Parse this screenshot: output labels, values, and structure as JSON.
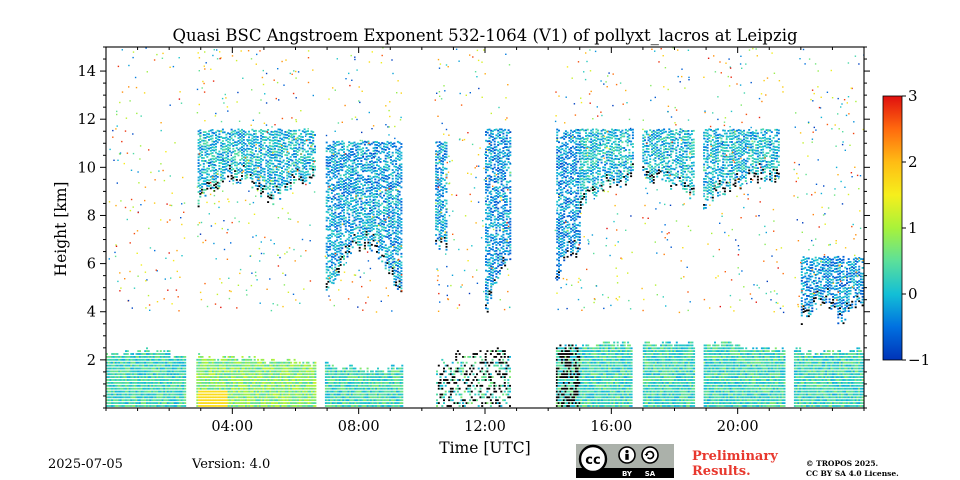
{
  "chart_data": {
    "type": "heatmap",
    "title": "Quasi BSC Angstroem Exponent 532-1064 (V1) of pollyxt_lacros at Leipzig",
    "xlabel": "Time [UTC]",
    "ylabel": "Height [km]",
    "xlim": [
      0,
      24
    ],
    "ylim": [
      0,
      15
    ],
    "x_ticks": [
      "04:00",
      "08:00",
      "12:00",
      "16:00",
      "20:00"
    ],
    "x_tick_hours": [
      4,
      8,
      12,
      16,
      20
    ],
    "y_ticks": [
      2,
      4,
      6,
      8,
      10,
      12,
      14
    ],
    "colorbar": {
      "range": [
        -1,
        3
      ],
      "ticks": [
        "3",
        "2",
        "1",
        "0",
        "−1"
      ],
      "tick_values": [
        3,
        2,
        1,
        0,
        -1
      ],
      "colormap": "jet"
    },
    "data_gaps_hours": [
      [
        2.5,
        2.85
      ],
      [
        6.6,
        6.9
      ],
      [
        9.35,
        10.4
      ],
      [
        12.8,
        14.2
      ],
      [
        16.65,
        16.95
      ],
      [
        18.6,
        18.9
      ],
      [
        21.45,
        21.75
      ]
    ],
    "layers": [
      {
        "kind": "boundary-layer",
        "t_start": 0,
        "t_end": 24,
        "top_km": [
          2.2,
          2.3,
          2.1,
          2.0,
          2.0,
          1.9,
          1.8,
          1.6,
          1.5,
          1.6,
          1.9,
          2.2,
          2.4,
          2.5,
          2.5,
          2.6,
          2.6,
          2.6,
          2.6,
          2.6,
          2.4,
          2.3,
          2.2,
          2.3
        ],
        "angstrom_typical": 0.3
      },
      {
        "kind": "cirrus",
        "t_start": 2.9,
        "t_end": 6.6,
        "base_km": 8.5,
        "top_km": 11.5,
        "angstrom_typical": 0.0
      },
      {
        "kind": "cirrus",
        "t_start": 6.9,
        "t_end": 10.8,
        "base_km": 4.5,
        "top_km": 11.0,
        "angstrom_typical": -0.2
      },
      {
        "kind": "cirrus",
        "t_start": 12.0,
        "t_end": 15.0,
        "base_km": 3.8,
        "top_km": 11.5,
        "angstrom_typical": -0.3
      },
      {
        "kind": "cirrus",
        "t_start": 15.0,
        "t_end": 21.3,
        "base_km": 8.5,
        "top_km": 11.5,
        "angstrom_typical": 0.0
      },
      {
        "kind": "mid-level cloud",
        "t_start": 22.0,
        "t_end": 24.0,
        "base_km": 3.5,
        "top_km": 6.2,
        "angstrom_typical": -0.3
      }
    ]
  },
  "footer": {
    "date": "2025-07-05",
    "version": "Version: 4.0",
    "preliminary_line1": "Preliminary",
    "preliminary_line2": "Results.",
    "copyright_line1": "© TROPOS 2025.",
    "copyright_line2": "CC BY SA 4.0 License.",
    "license_badge": {
      "cc": "cc",
      "by": "BY",
      "sa": "SA"
    }
  }
}
